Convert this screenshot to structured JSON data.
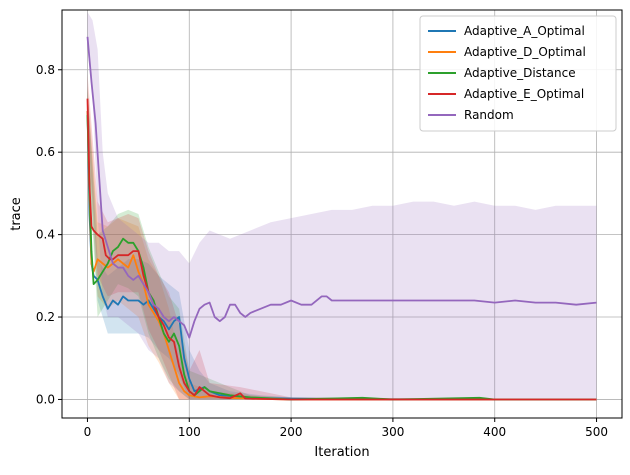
{
  "chart_data": {
    "type": "line",
    "title": "",
    "xlabel": "Iteration",
    "ylabel": "trace",
    "xlim": [
      -25,
      525
    ],
    "ylim": [
      -0.045,
      0.945
    ],
    "x_ticks": [
      0,
      100,
      200,
      300,
      400,
      500
    ],
    "x_tick_labels": [
      "0",
      "100",
      "200",
      "300",
      "400",
      "500"
    ],
    "y_ticks": [
      0.0,
      0.2,
      0.4,
      0.6,
      0.8
    ],
    "y_tick_labels": [
      "0.0",
      "0.2",
      "0.4",
      "0.6",
      "0.8"
    ],
    "grid": true,
    "legend_position": "top-right",
    "series": [
      {
        "name": "Adaptive_A_Optimal",
        "color": "#1f77b4",
        "mean": [
          [
            0,
            0.7
          ],
          [
            2,
            0.45
          ],
          [
            4,
            0.33
          ],
          [
            6,
            0.3
          ],
          [
            10,
            0.29
          ],
          [
            15,
            0.25
          ],
          [
            20,
            0.22
          ],
          [
            25,
            0.24
          ],
          [
            30,
            0.23
          ],
          [
            35,
            0.25
          ],
          [
            40,
            0.24
          ],
          [
            45,
            0.24
          ],
          [
            50,
            0.24
          ],
          [
            55,
            0.23
          ],
          [
            60,
            0.24
          ],
          [
            65,
            0.22
          ],
          [
            70,
            0.2
          ],
          [
            75,
            0.19
          ],
          [
            80,
            0.17
          ],
          [
            85,
            0.19
          ],
          [
            90,
            0.2
          ],
          [
            95,
            0.1
          ],
          [
            100,
            0.05
          ],
          [
            105,
            0.02
          ],
          [
            110,
            0.025
          ],
          [
            115,
            0.03
          ],
          [
            120,
            0.02
          ],
          [
            130,
            0.01
          ],
          [
            140,
            0.008
          ],
          [
            150,
            0.005
          ],
          [
            170,
            0.003
          ],
          [
            200,
            0.002
          ],
          [
            300,
            0.0
          ],
          [
            500,
            0.0
          ]
        ],
        "band": [
          [
            0,
            0.64,
            0.76
          ],
          [
            10,
            0.24,
            0.34
          ],
          [
            20,
            0.16,
            0.3
          ],
          [
            30,
            0.16,
            0.32
          ],
          [
            40,
            0.16,
            0.34
          ],
          [
            50,
            0.16,
            0.34
          ],
          [
            60,
            0.15,
            0.33
          ],
          [
            70,
            0.12,
            0.3
          ],
          [
            80,
            0.1,
            0.28
          ],
          [
            90,
            0.06,
            0.26
          ],
          [
            100,
            0.0,
            0.12
          ],
          [
            110,
            0.0,
            0.07
          ],
          [
            120,
            0.0,
            0.04
          ],
          [
            140,
            0.0,
            0.02
          ],
          [
            170,
            0.0,
            0.01
          ],
          [
            200,
            0.0,
            0.005
          ],
          [
            500,
            0.0,
            0.0
          ]
        ]
      },
      {
        "name": "Adaptive_D_Optimal",
        "color": "#ff7f0e",
        "mean": [
          [
            0,
            0.7
          ],
          [
            2,
            0.5
          ],
          [
            4,
            0.33
          ],
          [
            6,
            0.31
          ],
          [
            10,
            0.34
          ],
          [
            15,
            0.33
          ],
          [
            20,
            0.32
          ],
          [
            25,
            0.33
          ],
          [
            30,
            0.34
          ],
          [
            35,
            0.33
          ],
          [
            40,
            0.32
          ],
          [
            45,
            0.35
          ],
          [
            50,
            0.31
          ],
          [
            55,
            0.28
          ],
          [
            60,
            0.23
          ],
          [
            65,
            0.21
          ],
          [
            70,
            0.19
          ],
          [
            75,
            0.16
          ],
          [
            80,
            0.12
          ],
          [
            85,
            0.08
          ],
          [
            90,
            0.04
          ],
          [
            95,
            0.02
          ],
          [
            100,
            0.01
          ],
          [
            110,
            0.005
          ],
          [
            120,
            0.008
          ],
          [
            140,
            0.004
          ],
          [
            160,
            0.002
          ],
          [
            200,
            0.0
          ],
          [
            500,
            0.0
          ]
        ],
        "band": [
          [
            0,
            0.64,
            0.76
          ],
          [
            10,
            0.25,
            0.43
          ],
          [
            20,
            0.22,
            0.42
          ],
          [
            30,
            0.24,
            0.44
          ],
          [
            40,
            0.22,
            0.43
          ],
          [
            50,
            0.2,
            0.42
          ],
          [
            60,
            0.13,
            0.34
          ],
          [
            70,
            0.09,
            0.3
          ],
          [
            80,
            0.04,
            0.22
          ],
          [
            90,
            0.0,
            0.1
          ],
          [
            100,
            0.0,
            0.04
          ],
          [
            120,
            0.0,
            0.02
          ],
          [
            160,
            0.0,
            0.01
          ],
          [
            200,
            0.0,
            0.0
          ],
          [
            500,
            0.0,
            0.0
          ]
        ]
      },
      {
        "name": "Adaptive_Distance",
        "color": "#2ca02c",
        "mean": [
          [
            0,
            0.69
          ],
          [
            2,
            0.5
          ],
          [
            4,
            0.36
          ],
          [
            6,
            0.28
          ],
          [
            10,
            0.29
          ],
          [
            15,
            0.31
          ],
          [
            20,
            0.33
          ],
          [
            25,
            0.36
          ],
          [
            30,
            0.37
          ],
          [
            35,
            0.39
          ],
          [
            40,
            0.38
          ],
          [
            45,
            0.38
          ],
          [
            50,
            0.36
          ],
          [
            55,
            0.32
          ],
          [
            60,
            0.26
          ],
          [
            65,
            0.24
          ],
          [
            70,
            0.2
          ],
          [
            75,
            0.16
          ],
          [
            80,
            0.14
          ],
          [
            85,
            0.16
          ],
          [
            90,
            0.13
          ],
          [
            95,
            0.06
          ],
          [
            100,
            0.02
          ],
          [
            105,
            0.01
          ],
          [
            110,
            0.02
          ],
          [
            115,
            0.03
          ],
          [
            120,
            0.02
          ],
          [
            140,
            0.01
          ],
          [
            160,
            0.005
          ],
          [
            200,
            0.0
          ],
          [
            270,
            0.004
          ],
          [
            300,
            0.0
          ],
          [
            385,
            0.004
          ],
          [
            400,
            0.0
          ],
          [
            500,
            0.0
          ]
        ],
        "band": [
          [
            0,
            0.63,
            0.75
          ],
          [
            10,
            0.2,
            0.4
          ],
          [
            20,
            0.24,
            0.42
          ],
          [
            30,
            0.28,
            0.45
          ],
          [
            40,
            0.27,
            0.46
          ],
          [
            50,
            0.25,
            0.45
          ],
          [
            60,
            0.16,
            0.37
          ],
          [
            70,
            0.1,
            0.31
          ],
          [
            80,
            0.05,
            0.25
          ],
          [
            90,
            0.02,
            0.22
          ],
          [
            100,
            0.0,
            0.07
          ],
          [
            120,
            0.0,
            0.05
          ],
          [
            140,
            0.0,
            0.03
          ],
          [
            160,
            0.0,
            0.01
          ],
          [
            200,
            0.0,
            0.005
          ],
          [
            500,
            0.0,
            0.0
          ]
        ]
      },
      {
        "name": "Adaptive_E_Optimal",
        "color": "#d62728",
        "mean": [
          [
            0,
            0.73
          ],
          [
            2,
            0.52
          ],
          [
            4,
            0.42
          ],
          [
            6,
            0.41
          ],
          [
            10,
            0.4
          ],
          [
            15,
            0.39
          ],
          [
            18,
            0.35
          ],
          [
            22,
            0.34
          ],
          [
            25,
            0.34
          ],
          [
            30,
            0.35
          ],
          [
            35,
            0.35
          ],
          [
            40,
            0.35
          ],
          [
            45,
            0.36
          ],
          [
            50,
            0.36
          ],
          [
            55,
            0.3
          ],
          [
            60,
            0.26
          ],
          [
            65,
            0.23
          ],
          [
            70,
            0.2
          ],
          [
            75,
            0.18
          ],
          [
            80,
            0.15
          ],
          [
            85,
            0.14
          ],
          [
            90,
            0.08
          ],
          [
            95,
            0.04
          ],
          [
            100,
            0.02
          ],
          [
            105,
            0.01
          ],
          [
            110,
            0.03
          ],
          [
            115,
            0.02
          ],
          [
            120,
            0.01
          ],
          [
            130,
            0.005
          ],
          [
            140,
            0.003
          ],
          [
            150,
            0.015
          ],
          [
            155,
            0.002
          ],
          [
            200,
            0.0
          ],
          [
            500,
            0.0
          ]
        ],
        "band": [
          [
            0,
            0.67,
            0.79
          ],
          [
            10,
            0.3,
            0.48
          ],
          [
            20,
            0.25,
            0.43
          ],
          [
            30,
            0.26,
            0.44
          ],
          [
            40,
            0.26,
            0.45
          ],
          [
            50,
            0.26,
            0.44
          ],
          [
            60,
            0.17,
            0.36
          ],
          [
            70,
            0.12,
            0.3
          ],
          [
            80,
            0.06,
            0.26
          ],
          [
            90,
            0.0,
            0.18
          ],
          [
            100,
            0.0,
            0.07
          ],
          [
            110,
            0.0,
            0.12
          ],
          [
            120,
            0.0,
            0.04
          ],
          [
            150,
            0.0,
            0.03
          ],
          [
            200,
            0.0,
            0.005
          ],
          [
            500,
            0.0,
            0.0
          ]
        ]
      },
      {
        "name": "Random",
        "color": "#9467bd",
        "mean": [
          [
            0,
            0.88
          ],
          [
            4,
            0.77
          ],
          [
            8,
            0.67
          ],
          [
            12,
            0.52
          ],
          [
            15,
            0.41
          ],
          [
            20,
            0.37
          ],
          [
            25,
            0.33
          ],
          [
            30,
            0.32
          ],
          [
            35,
            0.32
          ],
          [
            40,
            0.3
          ],
          [
            45,
            0.29
          ],
          [
            50,
            0.3
          ],
          [
            55,
            0.28
          ],
          [
            60,
            0.26
          ],
          [
            65,
            0.23
          ],
          [
            70,
            0.22
          ],
          [
            75,
            0.2
          ],
          [
            80,
            0.19
          ],
          [
            85,
            0.2
          ],
          [
            90,
            0.19
          ],
          [
            95,
            0.18
          ],
          [
            100,
            0.15
          ],
          [
            105,
            0.19
          ],
          [
            110,
            0.22
          ],
          [
            115,
            0.23
          ],
          [
            120,
            0.235
          ],
          [
            125,
            0.2
          ],
          [
            130,
            0.19
          ],
          [
            135,
            0.2
          ],
          [
            140,
            0.23
          ],
          [
            145,
            0.23
          ],
          [
            150,
            0.21
          ],
          [
            155,
            0.2
          ],
          [
            160,
            0.21
          ],
          [
            170,
            0.22
          ],
          [
            180,
            0.23
          ],
          [
            190,
            0.23
          ],
          [
            200,
            0.24
          ],
          [
            210,
            0.23
          ],
          [
            220,
            0.23
          ],
          [
            230,
            0.25
          ],
          [
            235,
            0.25
          ],
          [
            240,
            0.24
          ],
          [
            260,
            0.24
          ],
          [
            280,
            0.24
          ],
          [
            300,
            0.24
          ],
          [
            320,
            0.24
          ],
          [
            340,
            0.24
          ],
          [
            360,
            0.24
          ],
          [
            380,
            0.24
          ],
          [
            400,
            0.235
          ],
          [
            420,
            0.24
          ],
          [
            440,
            0.235
          ],
          [
            460,
            0.235
          ],
          [
            480,
            0.23
          ],
          [
            500,
            0.235
          ]
        ],
        "band": [
          [
            0,
            0.85,
            0.94
          ],
          [
            5,
            0.74,
            0.92
          ],
          [
            10,
            0.45,
            0.85
          ],
          [
            15,
            0.25,
            0.6
          ],
          [
            20,
            0.2,
            0.5
          ],
          [
            30,
            0.2,
            0.44
          ],
          [
            40,
            0.18,
            0.42
          ],
          [
            50,
            0.16,
            0.4
          ],
          [
            60,
            0.12,
            0.38
          ],
          [
            70,
            0.1,
            0.38
          ],
          [
            80,
            0.04,
            0.36
          ],
          [
            90,
            0.02,
            0.36
          ],
          [
            100,
            0.0,
            0.33
          ],
          [
            110,
            0.0,
            0.38
          ],
          [
            120,
            0.0,
            0.41
          ],
          [
            140,
            0.0,
            0.39
          ],
          [
            160,
            0.0,
            0.41
          ],
          [
            180,
            0.0,
            0.43
          ],
          [
            200,
            0.0,
            0.44
          ],
          [
            220,
            0.0,
            0.45
          ],
          [
            240,
            0.0,
            0.46
          ],
          [
            260,
            0.0,
            0.46
          ],
          [
            280,
            0.0,
            0.47
          ],
          [
            300,
            0.0,
            0.47
          ],
          [
            320,
            0.0,
            0.48
          ],
          [
            340,
            0.0,
            0.48
          ],
          [
            360,
            0.0,
            0.47
          ],
          [
            380,
            0.0,
            0.48
          ],
          [
            400,
            0.0,
            0.47
          ],
          [
            420,
            0.0,
            0.47
          ],
          [
            440,
            0.0,
            0.46
          ],
          [
            460,
            0.0,
            0.47
          ],
          [
            480,
            0.0,
            0.47
          ],
          [
            500,
            0.0,
            0.47
          ]
        ]
      }
    ]
  }
}
